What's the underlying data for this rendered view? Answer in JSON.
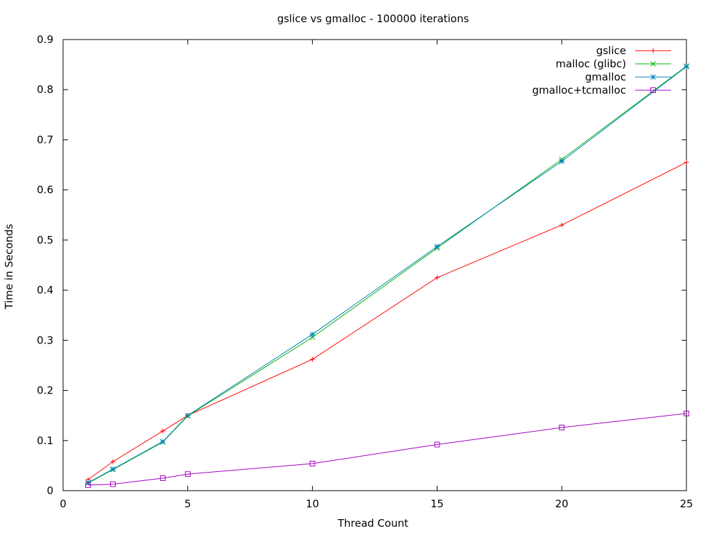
{
  "chart_data": {
    "type": "line",
    "title": "gslice vs gmalloc - 100000 iterations",
    "xlabel": "Thread Count",
    "ylabel": "Time in Seconds",
    "xlim": [
      0,
      25
    ],
    "ylim": [
      0,
      0.9
    ],
    "xticks": [
      0,
      5,
      10,
      15,
      20,
      25
    ],
    "xtick_labels": [
      "0",
      "5",
      "10",
      "15",
      "20",
      "25"
    ],
    "yticks": [
      0,
      0.1,
      0.2,
      0.3,
      0.4,
      0.5,
      0.6,
      0.7,
      0.8,
      0.9
    ],
    "ytick_labels": [
      "0",
      "0.1",
      "0.2",
      "0.3",
      "0.4",
      "0.5",
      "0.6",
      "0.7",
      "0.8",
      "0.9"
    ],
    "grid": false,
    "legend_position": "top-right",
    "x": [
      1,
      2,
      4,
      5,
      10,
      15,
      20,
      25
    ],
    "series": [
      {
        "name": "gslice",
        "color": "#ff0000",
        "marker": "plus",
        "values": [
          0.022,
          0.058,
          0.119,
          0.15,
          0.262,
          0.425,
          0.53,
          0.655
        ]
      },
      {
        "name": "malloc (glibc)",
        "color": "#00b000",
        "marker": "cross",
        "values": [
          0.015,
          0.042,
          0.097,
          0.149,
          0.306,
          0.484,
          0.661,
          0.847
        ]
      },
      {
        "name": "gmalloc",
        "color": "#0080c0",
        "marker": "star",
        "values": [
          0.016,
          0.043,
          0.098,
          0.15,
          0.312,
          0.487,
          0.657,
          0.846
        ]
      },
      {
        "name": "gmalloc+tcmalloc",
        "color": "#a000c0",
        "marker": "square",
        "values": [
          0.011,
          0.013,
          0.025,
          0.033,
          0.054,
          0.092,
          0.126,
          0.154
        ]
      }
    ]
  }
}
